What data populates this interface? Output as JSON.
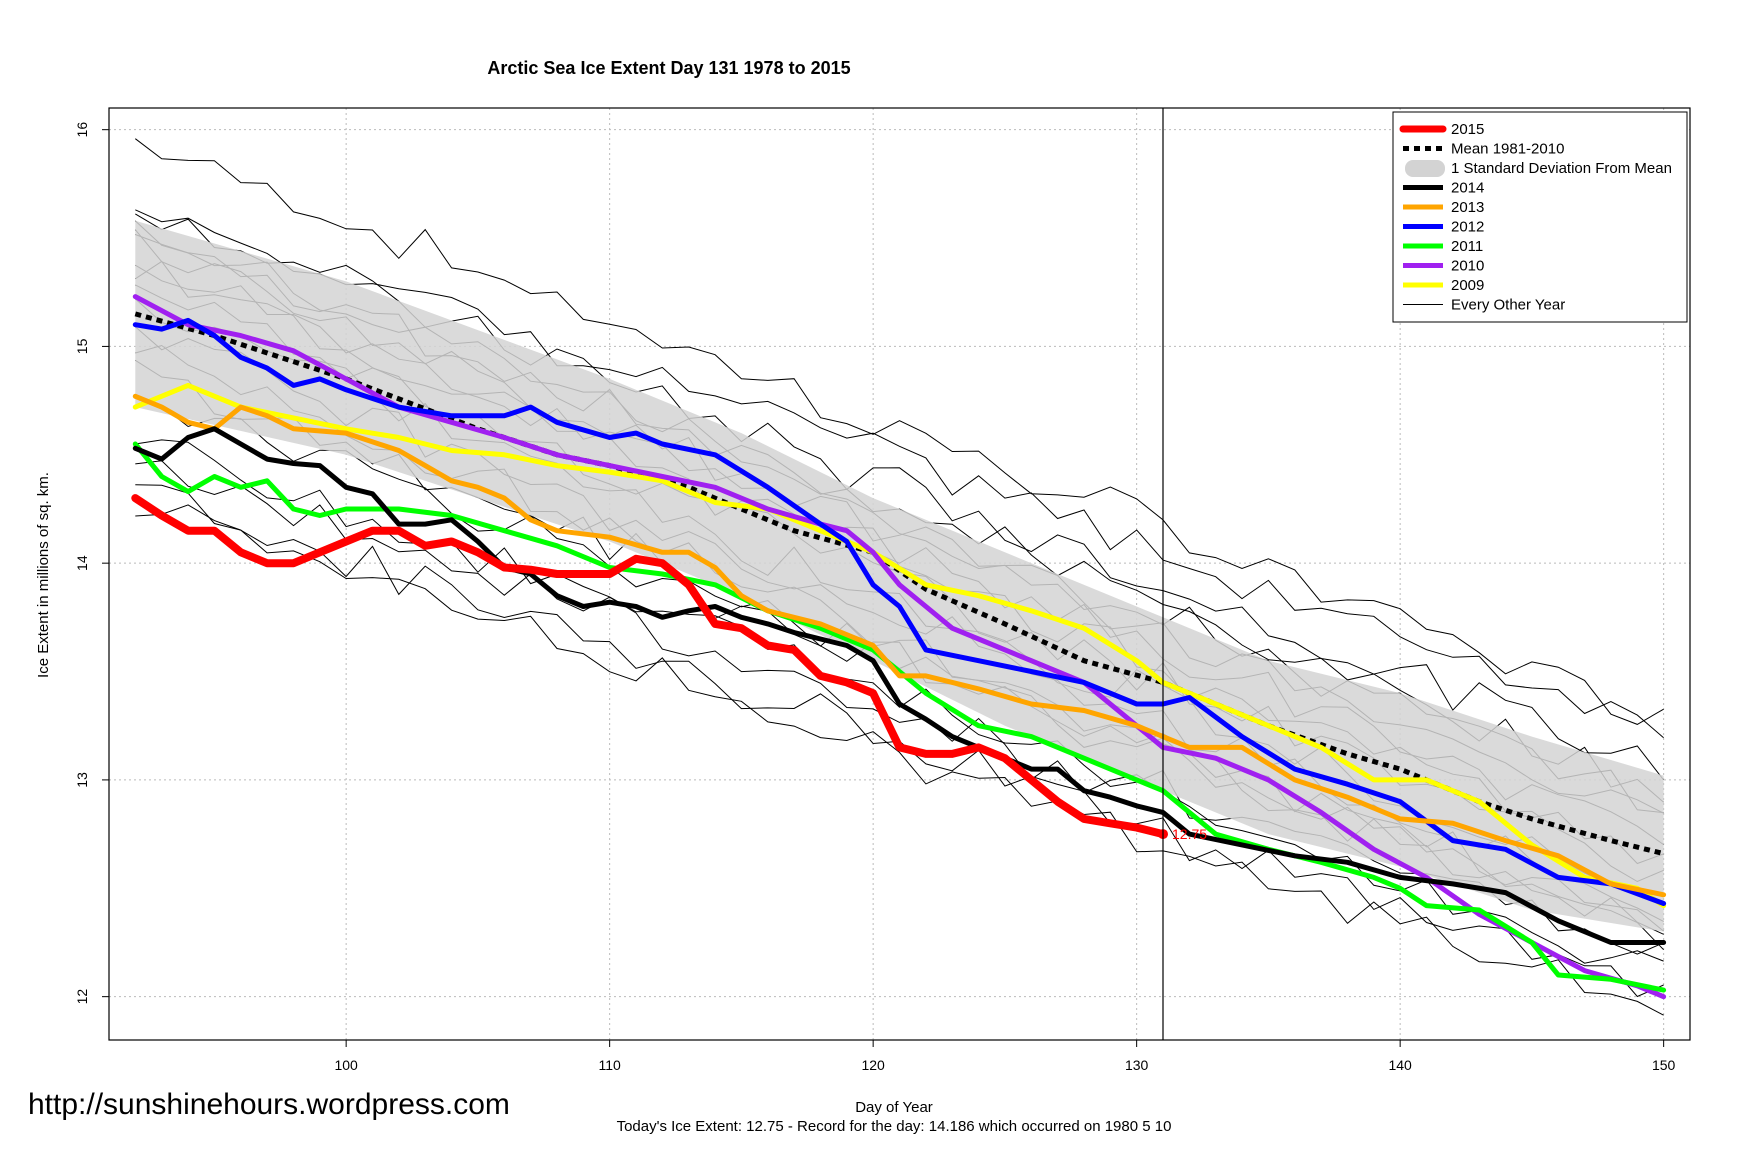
{
  "chart_data": {
    "type": "line",
    "title": "Arctic Sea Ice Extent Day 131 1978 to 2015",
    "xlabel": "Day of Year",
    "ylabel": "Ice Extent in millions of sq. km.",
    "xlim": [
      91,
      151
    ],
    "ylim": [
      11.8,
      16.1
    ],
    "xticks": [
      100,
      110,
      120,
      130,
      140,
      150
    ],
    "yticks": [
      12,
      13,
      14,
      15,
      16
    ],
    "grid": true,
    "marker_day": 131,
    "legend_position": "top-right",
    "footer": "Today's Ice Extent: 12.75  - Record for the day: 14.186 which occurred on 1980 5 10",
    "watermark": "http://sunshinehours.wordpress.com",
    "endpoint_label": "12.75",
    "legend": [
      {
        "label": "2015",
        "color": "#ff0000",
        "style": "thick"
      },
      {
        "label": "Mean 1981-2010",
        "color": "#000000",
        "style": "dashed"
      },
      {
        "label": "1 Standard Deviation From Mean",
        "color": "#d3d3d3",
        "style": "band"
      },
      {
        "label": "2014",
        "color": "#000000",
        "style": "solid"
      },
      {
        "label": "2013",
        "color": "#ffa500",
        "style": "solid"
      },
      {
        "label": "2012",
        "color": "#0000ff",
        "style": "solid"
      },
      {
        "label": "2011",
        "color": "#00ff00",
        "style": "solid"
      },
      {
        "label": "2010",
        "color": "#a020f0",
        "style": "solid"
      },
      {
        "label": "2009",
        "color": "#ffff00",
        "style": "solid"
      },
      {
        "label": "Every Other Year",
        "color": "#000000",
        "style": "thin"
      }
    ],
    "band": {
      "x": [
        92,
        100,
        110,
        115,
        120,
        125,
        131,
        135,
        140,
        145,
        150
      ],
      "upper": [
        15.58,
        15.3,
        14.85,
        14.6,
        14.3,
        14.05,
        13.75,
        13.55,
        13.4,
        13.2,
        13.02
      ],
      "lower": [
        14.72,
        14.5,
        14.1,
        13.85,
        13.55,
        13.25,
        12.95,
        12.75,
        12.6,
        12.4,
        12.3
      ]
    },
    "series": [
      {
        "name": "Mean 1981-2010",
        "color": "#000000",
        "width": 5,
        "dash": "6,5",
        "x": [
          92,
          95,
          100,
          105,
          108,
          110,
          113,
          115,
          117,
          120,
          122,
          125,
          128,
          131,
          133,
          135,
          138,
          140,
          143,
          145,
          148,
          150
        ],
        "y": [
          15.15,
          15.05,
          14.85,
          14.62,
          14.5,
          14.45,
          14.35,
          14.25,
          14.15,
          14.05,
          13.88,
          13.72,
          13.55,
          13.45,
          13.35,
          13.25,
          13.12,
          13.05,
          12.9,
          12.82,
          12.72,
          12.66
        ]
      },
      {
        "name": "2009",
        "color": "#ffff00",
        "width": 5,
        "x": [
          92,
          94,
          96,
          98,
          100,
          102,
          104,
          106,
          108,
          110,
          112,
          114,
          116,
          118,
          120,
          122,
          124,
          126,
          128,
          130,
          131,
          133,
          135,
          137,
          139,
          141,
          143,
          145,
          147,
          149,
          150
        ],
        "y": [
          14.72,
          14.82,
          14.72,
          14.67,
          14.62,
          14.58,
          14.52,
          14.5,
          14.45,
          14.42,
          14.38,
          14.28,
          14.25,
          14.15,
          14.05,
          13.9,
          13.85,
          13.78,
          13.7,
          13.55,
          13.45,
          13.35,
          13.25,
          13.15,
          13.0,
          13.0,
          12.9,
          12.7,
          12.55,
          12.5,
          12.42
        ]
      },
      {
        "name": "2010",
        "color": "#a020f0",
        "width": 5,
        "x": [
          92,
          94,
          96,
          98,
          100,
          102,
          104,
          106,
          108,
          110,
          112,
          114,
          116,
          118,
          119,
          120,
          121,
          122,
          123,
          124,
          126,
          128,
          130,
          131,
          133,
          135,
          137,
          139,
          141,
          143,
          145,
          147,
          149,
          150
        ],
        "y": [
          15.23,
          15.1,
          15.05,
          14.98,
          14.85,
          14.72,
          14.65,
          14.58,
          14.5,
          14.45,
          14.4,
          14.35,
          14.25,
          14.18,
          14.15,
          14.05,
          13.9,
          13.8,
          13.7,
          13.65,
          13.55,
          13.45,
          13.25,
          13.15,
          13.1,
          13.0,
          12.85,
          12.68,
          12.55,
          12.38,
          12.25,
          12.12,
          12.05,
          12.0
        ]
      },
      {
        "name": "2011",
        "color": "#00ff00",
        "width": 5,
        "x": [
          92,
          93,
          94,
          95,
          96,
          97,
          98,
          99,
          100,
          102,
          104,
          106,
          108,
          110,
          112,
          114,
          116,
          118,
          120,
          122,
          124,
          126,
          128,
          130,
          131,
          133,
          135,
          137,
          139,
          140,
          141,
          143,
          145,
          146,
          148,
          150
        ],
        "y": [
          14.55,
          14.4,
          14.33,
          14.4,
          14.35,
          14.38,
          14.25,
          14.22,
          14.25,
          14.25,
          14.22,
          14.15,
          14.08,
          13.98,
          13.95,
          13.9,
          13.78,
          13.7,
          13.6,
          13.4,
          13.25,
          13.2,
          13.1,
          13.0,
          12.95,
          12.75,
          12.68,
          12.62,
          12.55,
          12.5,
          12.42,
          12.4,
          12.25,
          12.1,
          12.08,
          12.03
        ]
      },
      {
        "name": "2012",
        "color": "#0000ff",
        "width": 5,
        "x": [
          92,
          93,
          94,
          95,
          96,
          97,
          98,
          99,
          100,
          102,
          104,
          106,
          107,
          108,
          110,
          111,
          112,
          114,
          116,
          118,
          119,
          120,
          121,
          122,
          124,
          126,
          128,
          130,
          131,
          132,
          134,
          136,
          138,
          140,
          142,
          144,
          146,
          148,
          150
        ],
        "y": [
          15.1,
          15.08,
          15.12,
          15.05,
          14.95,
          14.9,
          14.82,
          14.85,
          14.8,
          14.72,
          14.68,
          14.68,
          14.72,
          14.65,
          14.58,
          14.6,
          14.55,
          14.5,
          14.35,
          14.18,
          14.1,
          13.9,
          13.8,
          13.6,
          13.55,
          13.5,
          13.45,
          13.35,
          13.35,
          13.38,
          13.2,
          13.05,
          12.98,
          12.9,
          12.72,
          12.68,
          12.55,
          12.52,
          12.43
        ]
      },
      {
        "name": "2013",
        "color": "#ffa500",
        "width": 5,
        "x": [
          92,
          93,
          94,
          95,
          96,
          97,
          98,
          100,
          102,
          103,
          104,
          105,
          106,
          107,
          108,
          110,
          112,
          113,
          114,
          115,
          116,
          118,
          120,
          121,
          122,
          124,
          126,
          128,
          130,
          131,
          132,
          134,
          136,
          138,
          140,
          142,
          144,
          146,
          148,
          150
        ],
        "y": [
          14.77,
          14.72,
          14.65,
          14.62,
          14.72,
          14.68,
          14.62,
          14.6,
          14.52,
          14.45,
          14.38,
          14.35,
          14.3,
          14.2,
          14.15,
          14.12,
          14.05,
          14.05,
          13.98,
          13.85,
          13.78,
          13.72,
          13.62,
          13.48,
          13.48,
          13.42,
          13.35,
          13.32,
          13.25,
          13.2,
          13.15,
          13.15,
          13.0,
          12.92,
          12.82,
          12.8,
          12.72,
          12.65,
          12.52,
          12.47
        ]
      },
      {
        "name": "2014",
        "color": "#000000",
        "width": 5,
        "x": [
          92,
          93,
          94,
          95,
          96,
          97,
          98,
          99,
          100,
          101,
          102,
          103,
          104,
          105,
          106,
          107,
          108,
          109,
          110,
          111,
          112,
          113,
          114,
          115,
          116,
          117,
          118,
          119,
          120,
          121,
          122,
          123,
          124,
          125,
          126,
          127,
          128,
          129,
          130,
          131,
          132,
          134,
          136,
          138,
          140,
          142,
          144,
          146,
          148,
          150
        ],
        "y": [
          14.53,
          14.48,
          14.58,
          14.62,
          14.55,
          14.48,
          14.46,
          14.45,
          14.35,
          14.32,
          14.18,
          14.18,
          14.2,
          14.1,
          13.98,
          13.95,
          13.85,
          13.8,
          13.82,
          13.8,
          13.75,
          13.78,
          13.8,
          13.75,
          13.72,
          13.68,
          13.65,
          13.62,
          13.55,
          13.35,
          13.28,
          13.2,
          13.15,
          13.1,
          13.05,
          13.05,
          12.95,
          12.92,
          12.88,
          12.85,
          12.75,
          12.7,
          12.65,
          12.62,
          12.55,
          12.52,
          12.48,
          12.35,
          12.25,
          12.25
        ]
      },
      {
        "name": "2015",
        "color": "#ff0000",
        "width": 8,
        "x": [
          92,
          93,
          94,
          95,
          96,
          97,
          98,
          99,
          100,
          101,
          102,
          103,
          104,
          105,
          106,
          107,
          108,
          109,
          110,
          111,
          112,
          113,
          114,
          115,
          116,
          117,
          118,
          119,
          120,
          121,
          122,
          123,
          124,
          125,
          126,
          127,
          128,
          129,
          130,
          131
        ],
        "y": [
          14.3,
          14.22,
          14.15,
          14.15,
          14.05,
          14.0,
          14.0,
          14.05,
          14.1,
          14.15,
          14.15,
          14.08,
          14.1,
          14.05,
          13.98,
          13.97,
          13.95,
          13.95,
          13.95,
          14.02,
          14.0,
          13.9,
          13.72,
          13.7,
          13.62,
          13.6,
          13.48,
          13.45,
          13.4,
          13.15,
          13.12,
          13.12,
          13.15,
          13.1,
          13.0,
          12.9,
          12.82,
          12.8,
          12.78,
          12.75
        ]
      }
    ]
  }
}
